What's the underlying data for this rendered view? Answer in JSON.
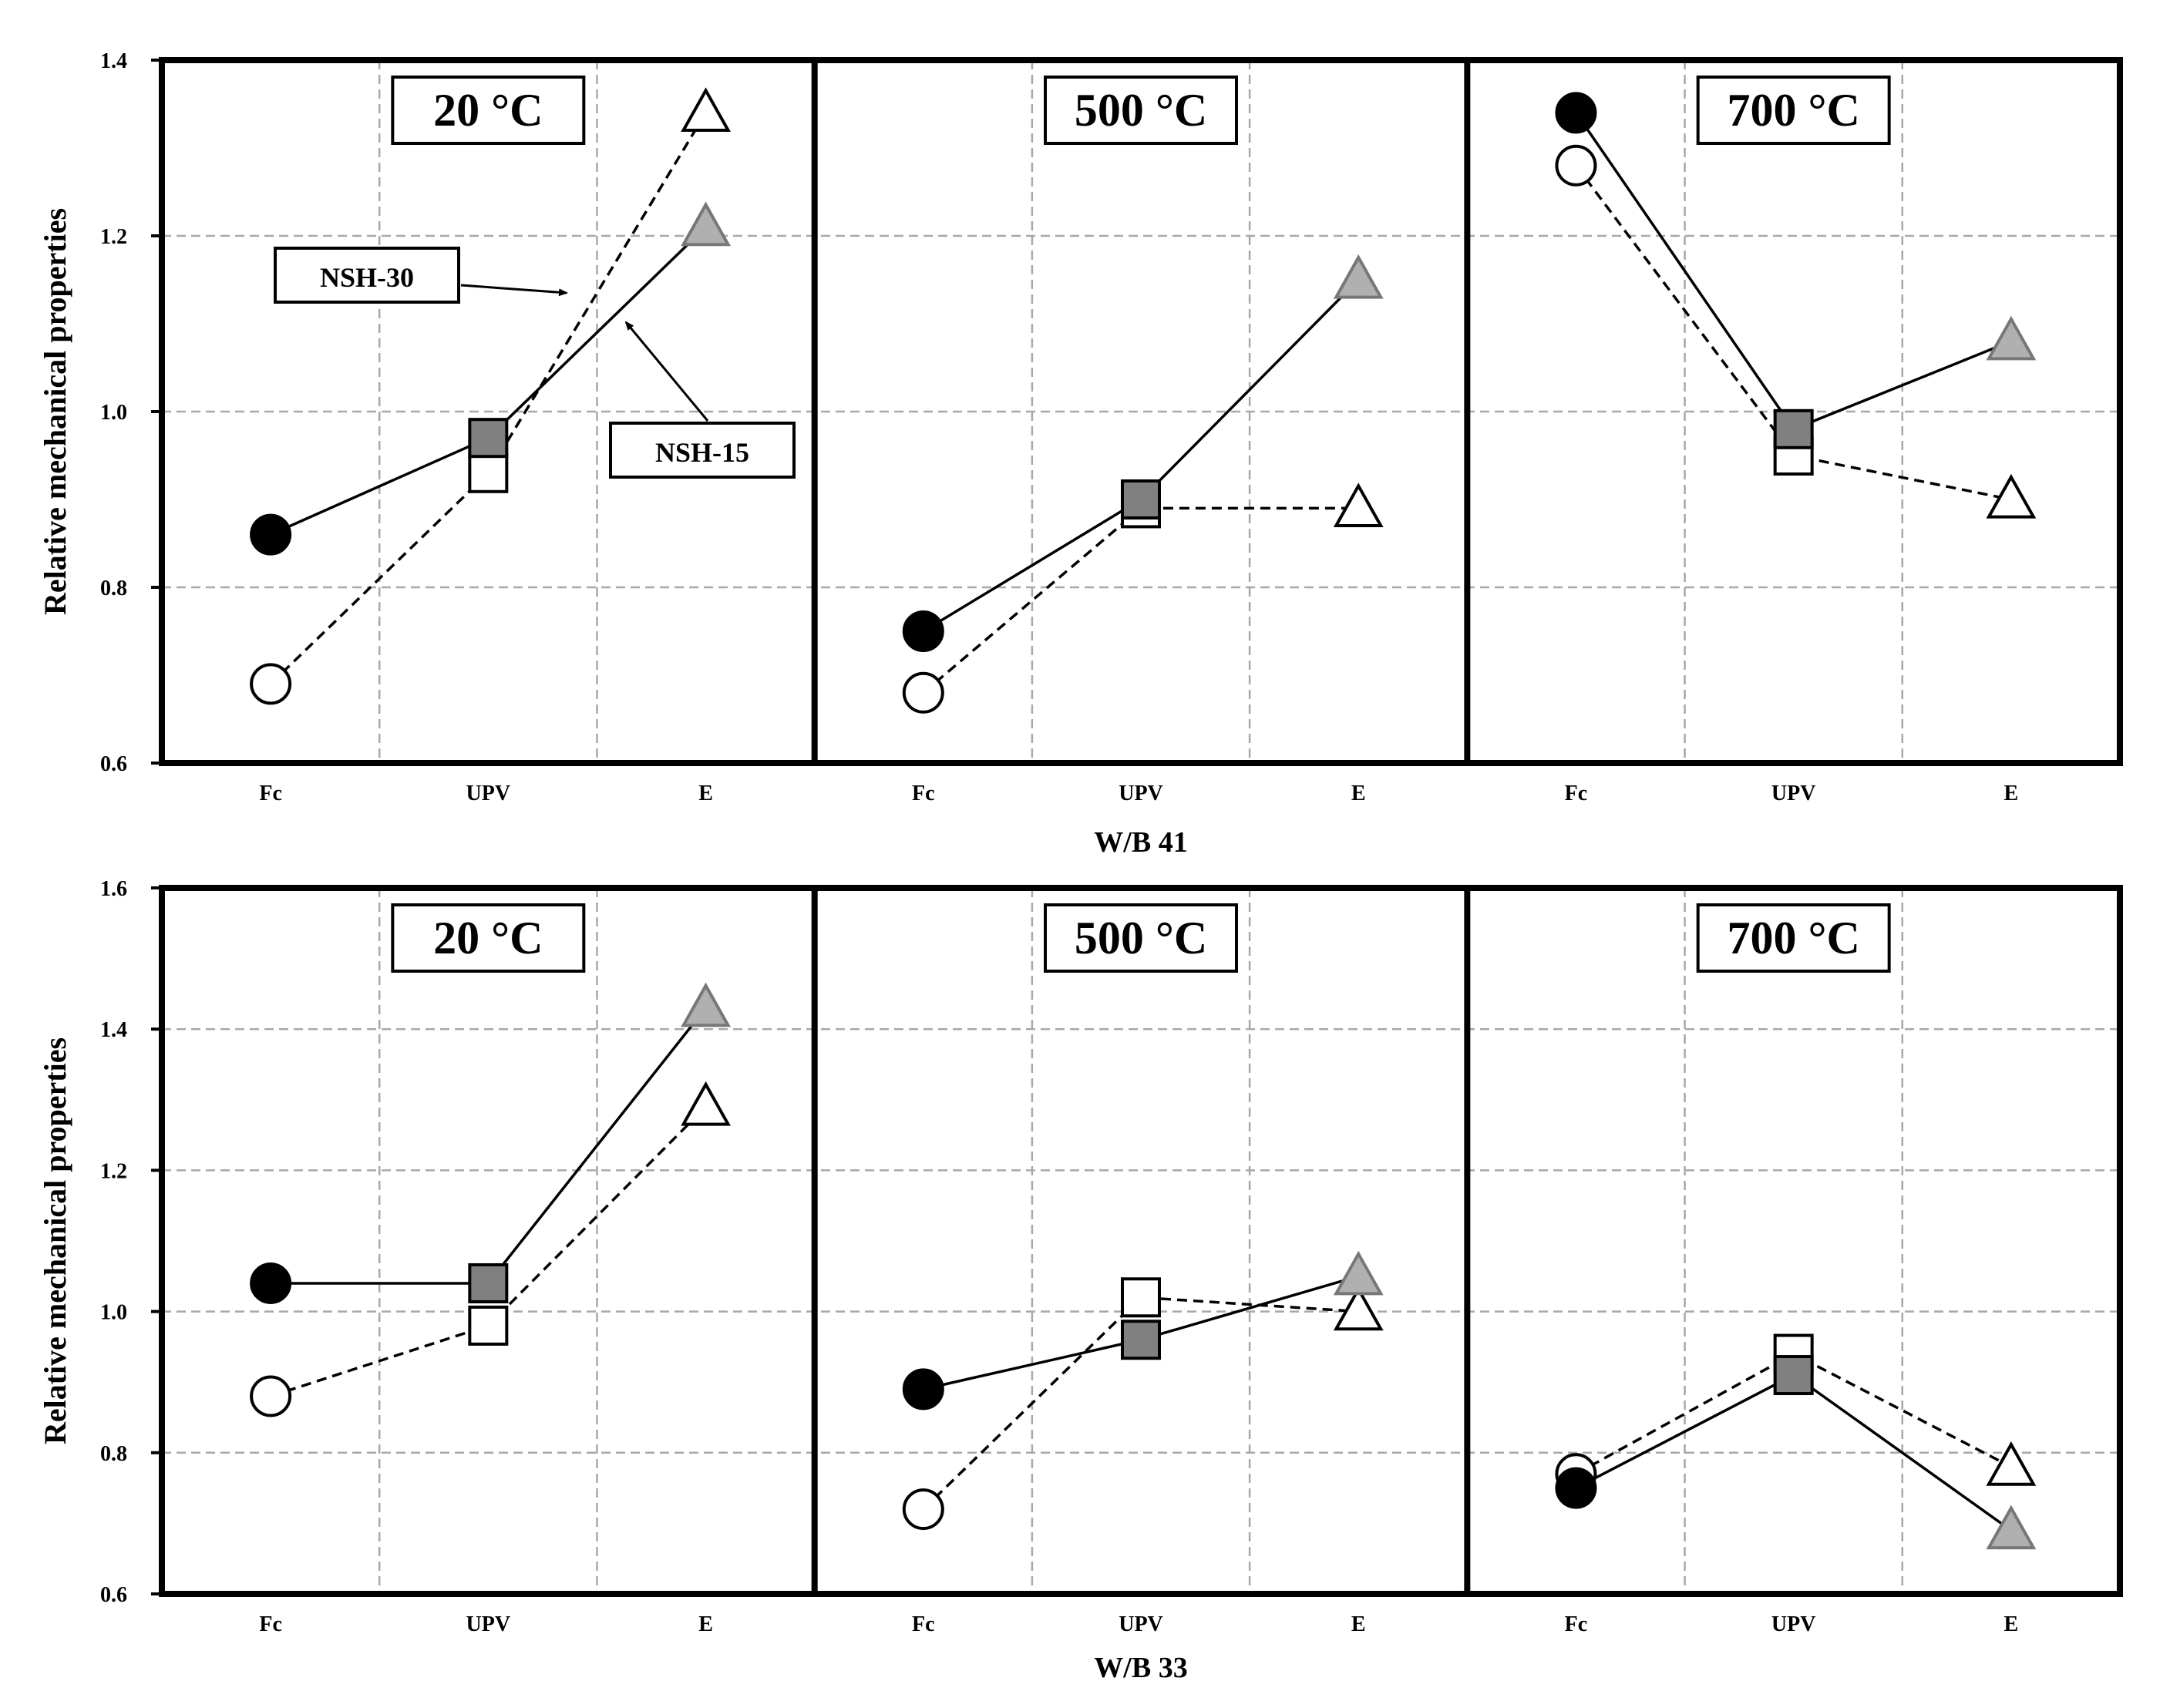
{
  "colors": {
    "fc_nsh15": "#000000",
    "upv_nsh15": "#808080",
    "e_nsh15": "#b0b0b0",
    "nsh30_fill": "#ffffff",
    "grid": "#a8a8a8"
  },
  "chart_data": [
    {
      "type": "line",
      "panel_group": "W/B 41",
      "xlabel": "W/B 41",
      "ylabel": "Relative mechanical properties",
      "ylim": [
        0.6,
        1.4
      ],
      "yticks": [
        "0.6",
        "0.8",
        "1.0",
        "1.2",
        "1.4"
      ],
      "categories": [
        "Fc",
        "UPV",
        "E"
      ],
      "grid": true,
      "annotations": [
        {
          "text": "NSH-30",
          "points_to": "NSH-30 line, 20 °C panel"
        },
        {
          "text": "NSH-15",
          "points_to": "NSH-15 line, 20 °C panel"
        }
      ],
      "panels": [
        {
          "title": "20 °C",
          "series": [
            {
              "name": "NSH-15",
              "line": "solid",
              "values": [
                0.86,
                0.97,
                1.21
              ]
            },
            {
              "name": "NSH-30",
              "line": "dashed",
              "values": [
                0.69,
                0.93,
                1.34
              ]
            }
          ]
        },
        {
          "title": "500 °C",
          "series": [
            {
              "name": "NSH-15",
              "line": "solid",
              "values": [
                0.75,
                0.9,
                1.15
              ]
            },
            {
              "name": "NSH-30",
              "line": "dashed",
              "values": [
                0.68,
                0.89,
                0.89
              ]
            }
          ]
        },
        {
          "title": "700 °C",
          "series": [
            {
              "name": "NSH-15",
              "line": "solid",
              "values": [
                1.34,
                0.98,
                1.08
              ]
            },
            {
              "name": "NSH-30",
              "line": "dashed",
              "values": [
                1.28,
                0.95,
                0.9
              ]
            }
          ]
        }
      ]
    },
    {
      "type": "line",
      "panel_group": "W/B 33",
      "xlabel": "W/B 33",
      "ylabel": "Relative mechanical properties",
      "ylim": [
        0.6,
        1.6
      ],
      "yticks": [
        "0.6",
        "0.8",
        "1.0",
        "1.2",
        "1.4",
        "1.6"
      ],
      "categories": [
        "Fc",
        "UPV",
        "E"
      ],
      "grid": true,
      "annotations": [],
      "panels": [
        {
          "title": "20 °C",
          "series": [
            {
              "name": "NSH-15",
              "line": "solid",
              "values": [
                1.04,
                1.04,
                1.43
              ]
            },
            {
              "name": "NSH-30",
              "line": "dashed",
              "values": [
                0.88,
                0.98,
                1.29
              ]
            }
          ]
        },
        {
          "title": "500 °C",
          "series": [
            {
              "name": "NSH-15",
              "line": "solid",
              "values": [
                0.89,
                0.96,
                1.05
              ]
            },
            {
              "name": "NSH-30",
              "line": "dashed",
              "values": [
                0.72,
                1.02,
                1.0
              ]
            }
          ]
        },
        {
          "title": "700 °C",
          "series": [
            {
              "name": "NSH-15",
              "line": "solid",
              "values": [
                0.75,
                0.91,
                0.69
              ]
            },
            {
              "name": "NSH-30",
              "line": "dashed",
              "values": [
                0.77,
                0.94,
                0.78
              ]
            }
          ]
        }
      ]
    }
  ]
}
